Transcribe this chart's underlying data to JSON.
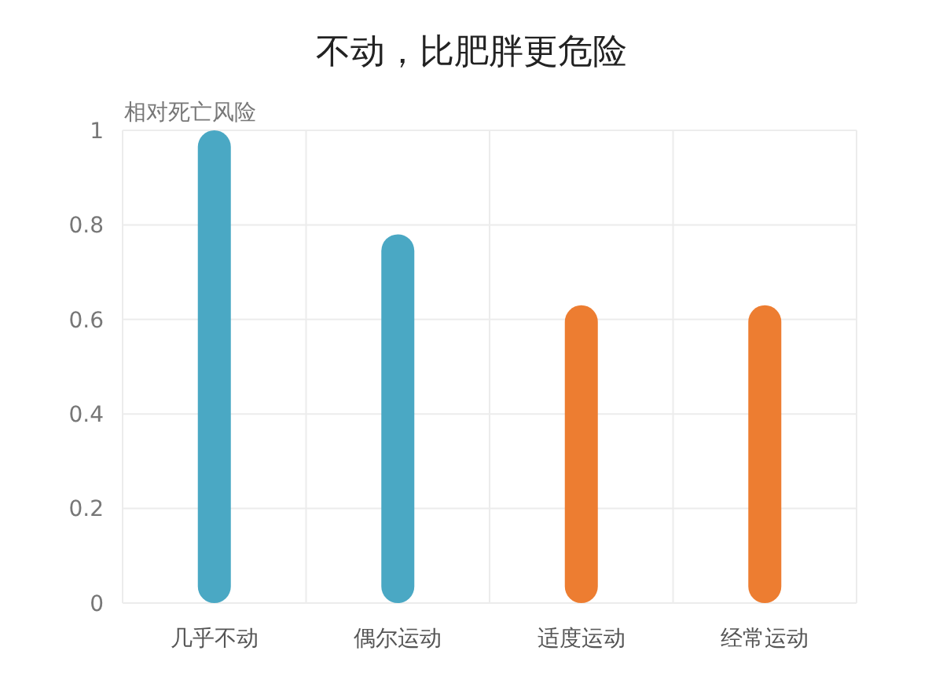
{
  "chart_data": {
    "type": "bar",
    "title": "不动，比肥胖更危险",
    "ylabel": "相对死亡风险",
    "categories": [
      "几乎不动",
      "偶尔运动",
      "适度运动",
      "经常运动"
    ],
    "values": [
      1.0,
      0.78,
      0.63,
      0.63
    ],
    "colors": [
      "#4aa8c4",
      "#4aa8c4",
      "#ed7d31",
      "#ed7d31"
    ],
    "ylim": [
      0,
      1
    ],
    "yticks": [
      0,
      0.2,
      0.4,
      0.6,
      0.8,
      1
    ],
    "grid": true
  }
}
